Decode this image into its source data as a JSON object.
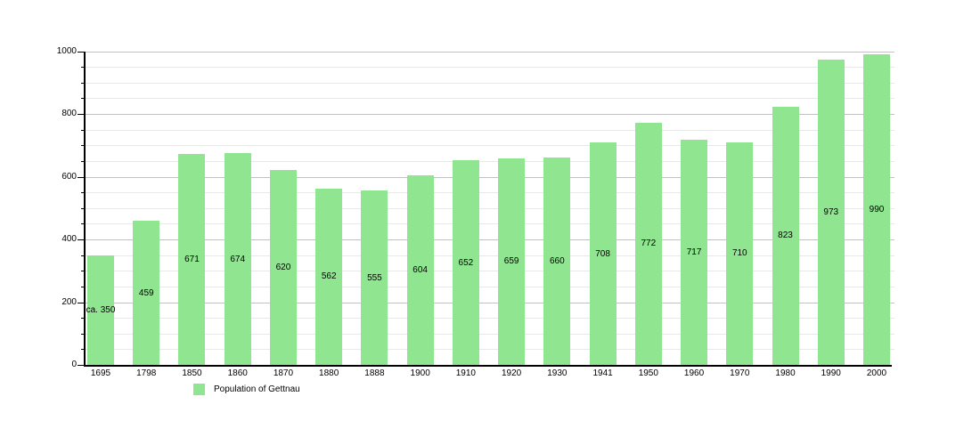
{
  "chart_data": {
    "type": "bar",
    "categories": [
      "1695",
      "1798",
      "1850",
      "1860",
      "1870",
      "1880",
      "1888",
      "1900",
      "1910",
      "1920",
      "1930",
      "1941",
      "1950",
      "1960",
      "1970",
      "1980",
      "1990",
      "2000"
    ],
    "values": [
      350,
      459,
      671,
      674,
      620,
      562,
      555,
      604,
      652,
      659,
      660,
      708,
      772,
      717,
      710,
      823,
      973,
      990
    ],
    "bar_labels": [
      "ca. 350",
      "459",
      "671",
      "674",
      "620",
      "562",
      "555",
      "604",
      "652",
      "659",
      "660",
      "708",
      "772",
      "717",
      "710",
      "823",
      "973",
      "990"
    ],
    "title": "",
    "xlabel": "",
    "ylabel": "",
    "ylim": [
      0,
      1000
    ],
    "y_ticks": [
      0,
      200,
      400,
      600,
      800,
      1000
    ],
    "y_tick_labels": [
      "0",
      "200",
      "400",
      "600",
      "800",
      "1000"
    ],
    "minor_grid_step": 50,
    "grid": true,
    "legend_position": "bottom-left",
    "series": [
      {
        "name": "Population of Gettnau",
        "color": "#90e690"
      }
    ]
  },
  "legend": {
    "label": "Population of Gettnau",
    "swatch_color": "#90e690"
  },
  "colors": {
    "bar": "#90e690",
    "minor_grid": "#e8e8e8",
    "major_grid": "#c2c2c2",
    "axis": "#000000",
    "background": "#ffffff"
  }
}
